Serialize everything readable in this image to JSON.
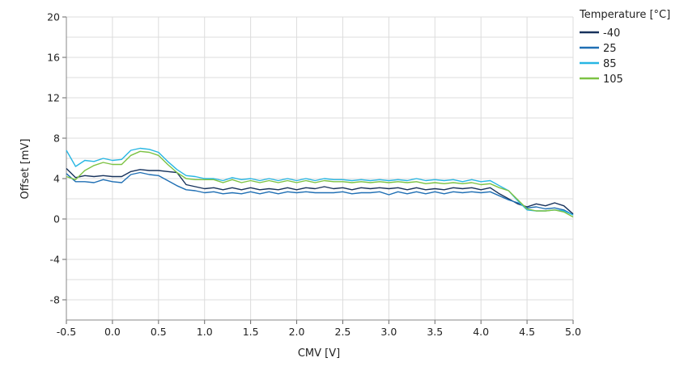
{
  "chart_data": {
    "type": "line",
    "xlabel": "CMV [V]",
    "ylabel": "Offset [mV]",
    "xlim": [
      -0.5,
      5.0
    ],
    "ylim": [
      -10,
      20
    ],
    "xticks": [
      "-0.5",
      "0.0",
      "0.5",
      "1.0",
      "1.5",
      "2.0",
      "2.5",
      "3.0",
      "3.5",
      "4.0",
      "4.5",
      "5.0"
    ],
    "yticks": [
      "-8",
      "-4",
      "0",
      "4",
      "8",
      "12",
      "16",
      "20"
    ],
    "grid": true,
    "legend": {
      "title": "Temperature [°C]",
      "position": "right"
    },
    "series": [
      {
        "name": "-40",
        "color": "#17325c",
        "x": [
          -0.5,
          -0.4,
          -0.3,
          -0.2,
          -0.1,
          0.0,
          0.1,
          0.2,
          0.3,
          0.4,
          0.5,
          0.6,
          0.7,
          0.8,
          0.9,
          1.0,
          1.1,
          1.2,
          1.3,
          1.4,
          1.5,
          1.6,
          1.7,
          1.8,
          1.9,
          2.0,
          2.1,
          2.2,
          2.3,
          2.4,
          2.5,
          2.6,
          2.7,
          2.8,
          2.9,
          3.0,
          3.1,
          3.2,
          3.3,
          3.4,
          3.5,
          3.6,
          3.7,
          3.8,
          3.9,
          4.0,
          4.1,
          4.2,
          4.3,
          4.4,
          4.5,
          4.6,
          4.7,
          4.8,
          4.9,
          5.0
        ],
        "y": [
          5.0,
          4.1,
          4.3,
          4.2,
          4.3,
          4.2,
          4.2,
          4.7,
          4.9,
          4.8,
          4.8,
          4.7,
          4.6,
          3.4,
          3.2,
          3.0,
          3.1,
          2.9,
          3.1,
          2.9,
          3.1,
          2.9,
          3.0,
          2.9,
          3.1,
          2.9,
          3.1,
          3.0,
          3.2,
          3.0,
          3.1,
          2.9,
          3.1,
          3.0,
          3.1,
          3.0,
          3.1,
          2.9,
          3.1,
          2.9,
          3.0,
          2.9,
          3.1,
          3.0,
          3.1,
          2.9,
          3.1,
          2.5,
          2.0,
          1.5,
          1.2,
          1.5,
          1.3,
          1.6,
          1.3,
          0.5
        ]
      },
      {
        "name": "25",
        "color": "#1f6fb4",
        "x": [
          -0.5,
          -0.4,
          -0.3,
          -0.2,
          -0.1,
          0.0,
          0.1,
          0.2,
          0.3,
          0.4,
          0.5,
          0.6,
          0.7,
          0.8,
          0.9,
          1.0,
          1.1,
          1.2,
          1.3,
          1.4,
          1.5,
          1.6,
          1.7,
          1.8,
          1.9,
          2.0,
          2.1,
          2.2,
          2.3,
          2.4,
          2.5,
          2.6,
          2.7,
          2.8,
          2.9,
          3.0,
          3.1,
          3.2,
          3.3,
          3.4,
          3.5,
          3.6,
          3.7,
          3.8,
          3.9,
          4.0,
          4.1,
          4.2,
          4.3,
          4.4,
          4.5,
          4.6,
          4.7,
          4.8,
          4.9,
          5.0
        ],
        "y": [
          4.5,
          3.7,
          3.7,
          3.6,
          3.9,
          3.7,
          3.6,
          4.4,
          4.6,
          4.4,
          4.3,
          3.8,
          3.3,
          2.9,
          2.8,
          2.6,
          2.7,
          2.5,
          2.6,
          2.5,
          2.7,
          2.5,
          2.7,
          2.5,
          2.7,
          2.6,
          2.7,
          2.6,
          2.6,
          2.6,
          2.7,
          2.5,
          2.6,
          2.6,
          2.7,
          2.4,
          2.7,
          2.5,
          2.7,
          2.5,
          2.7,
          2.5,
          2.7,
          2.6,
          2.7,
          2.6,
          2.7,
          2.3,
          1.9,
          1.6,
          1.1,
          1.2,
          1.0,
          1.1,
          0.9,
          0.4
        ]
      },
      {
        "name": "85",
        "color": "#27b6e3",
        "x": [
          -0.5,
          -0.4,
          -0.3,
          -0.2,
          -0.1,
          0.0,
          0.1,
          0.2,
          0.3,
          0.4,
          0.5,
          0.6,
          0.7,
          0.8,
          0.9,
          1.0,
          1.1,
          1.2,
          1.3,
          1.4,
          1.5,
          1.6,
          1.7,
          1.8,
          1.9,
          2.0,
          2.1,
          2.2,
          2.3,
          2.4,
          2.5,
          2.6,
          2.7,
          2.8,
          2.9,
          3.0,
          3.1,
          3.2,
          3.3,
          3.4,
          3.5,
          3.6,
          3.7,
          3.8,
          3.9,
          4.0,
          4.1,
          4.2,
          4.3,
          4.4,
          4.5,
          4.6,
          4.7,
          4.8,
          4.9,
          5.0
        ],
        "y": [
          6.8,
          5.2,
          5.8,
          5.7,
          6.0,
          5.8,
          5.9,
          6.8,
          7.0,
          6.9,
          6.6,
          5.7,
          4.9,
          4.3,
          4.2,
          4.0,
          4.0,
          3.8,
          4.1,
          3.9,
          4.0,
          3.8,
          4.0,
          3.8,
          4.0,
          3.8,
          4.0,
          3.8,
          4.0,
          3.9,
          3.9,
          3.8,
          3.9,
          3.8,
          3.9,
          3.8,
          3.9,
          3.8,
          4.0,
          3.8,
          3.9,
          3.8,
          3.9,
          3.7,
          3.9,
          3.7,
          3.8,
          3.3,
          2.8,
          1.8,
          0.9,
          0.8,
          0.8,
          0.9,
          0.8,
          0.4
        ]
      },
      {
        "name": "105",
        "color": "#7cc243",
        "x": [
          -0.5,
          -0.4,
          -0.3,
          -0.2,
          -0.1,
          0.0,
          0.1,
          0.2,
          0.3,
          0.4,
          0.5,
          0.6,
          0.7,
          0.8,
          0.9,
          1.0,
          1.1,
          1.2,
          1.3,
          1.4,
          1.5,
          1.6,
          1.7,
          1.8,
          1.9,
          2.0,
          2.1,
          2.2,
          2.3,
          2.4,
          2.5,
          2.6,
          2.7,
          2.8,
          2.9,
          3.0,
          3.1,
          3.2,
          3.3,
          3.4,
          3.5,
          3.6,
          3.7,
          3.8,
          3.9,
          4.0,
          4.1,
          4.2,
          4.3,
          4.4,
          4.5,
          4.6,
          4.7,
          4.8,
          4.9,
          5.0
        ],
        "y": [
          4.2,
          3.9,
          4.8,
          5.3,
          5.6,
          5.4,
          5.4,
          6.3,
          6.7,
          6.6,
          6.3,
          5.4,
          4.6,
          4.0,
          3.9,
          3.9,
          3.9,
          3.6,
          3.9,
          3.6,
          3.8,
          3.6,
          3.8,
          3.6,
          3.8,
          3.6,
          3.8,
          3.6,
          3.8,
          3.7,
          3.7,
          3.6,
          3.7,
          3.6,
          3.7,
          3.6,
          3.7,
          3.6,
          3.7,
          3.5,
          3.6,
          3.5,
          3.6,
          3.5,
          3.6,
          3.4,
          3.5,
          3.1,
          2.8,
          1.9,
          1.0,
          0.8,
          0.8,
          0.9,
          0.7,
          0.2
        ]
      }
    ]
  }
}
